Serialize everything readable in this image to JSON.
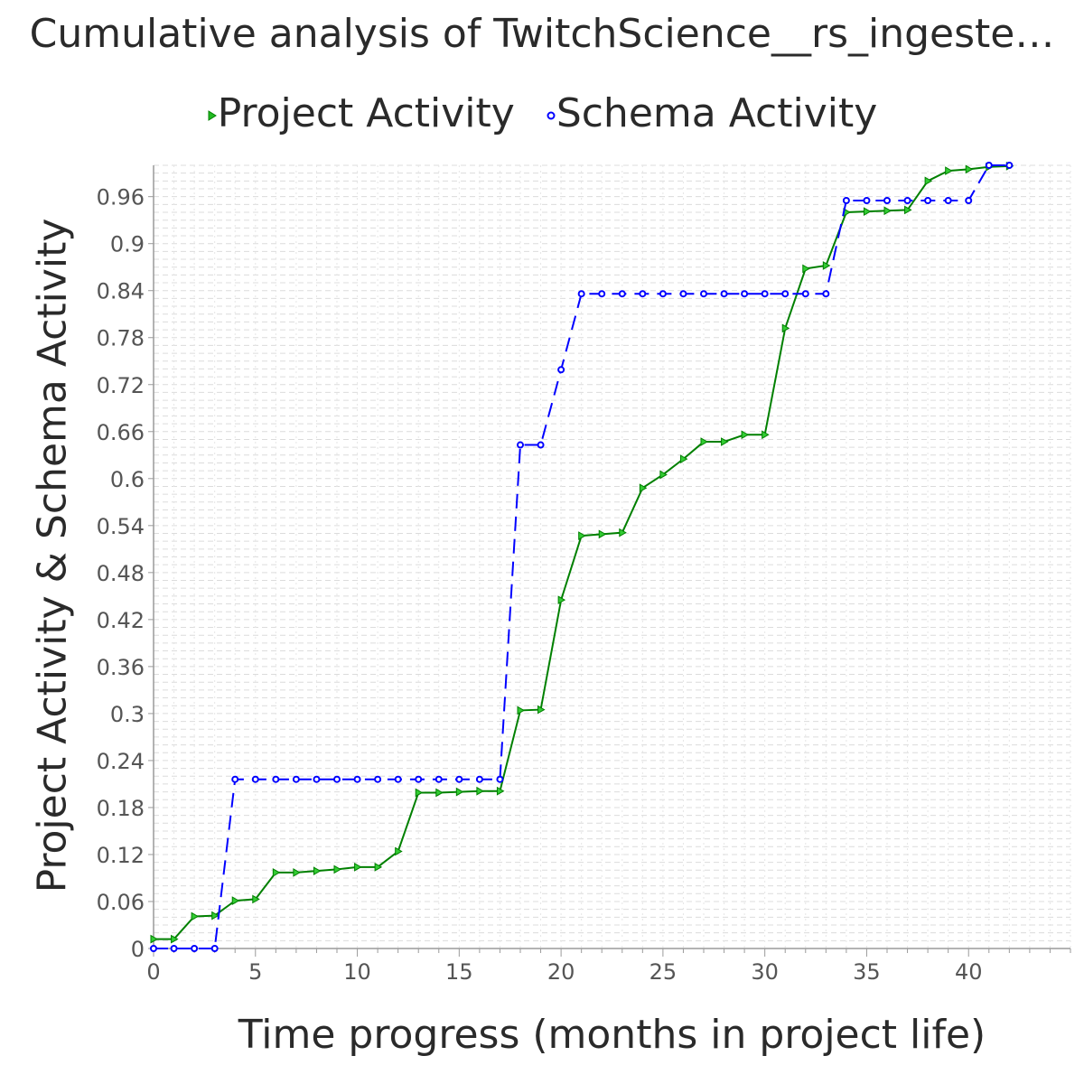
{
  "chart_data": {
    "type": "line",
    "title": "Cumulative analysis of TwitchScience__rs_ingeste…",
    "xlabel": "Time progress (months in project life)",
    "ylabel": "Project Activity & Schema Activity",
    "xlim": [
      0,
      45
    ],
    "ylim": [
      0,
      1.0
    ],
    "x_ticks": [
      0,
      5,
      10,
      15,
      20,
      25,
      30,
      35,
      40
    ],
    "y_ticks": [
      0,
      0.06,
      0.12,
      0.18,
      0.24,
      0.3,
      0.36,
      0.42,
      0.48,
      0.54,
      0.6,
      0.66,
      0.72,
      0.78,
      0.84,
      0.9,
      0.96
    ],
    "y_tick_labels": [
      "0",
      "0.06",
      "0.12",
      "0.18",
      "0.24",
      "0.3",
      "0.36",
      "0.42",
      "0.48",
      "0.54",
      "0.6",
      "0.66",
      "0.72",
      "0.78",
      "0.84",
      "0.9",
      "0.96"
    ],
    "grid": true,
    "legend": "top",
    "series": [
      {
        "name": "Project Activity",
        "color": "#008000",
        "marker": "triangle-right",
        "dash": "solid",
        "x": [
          0,
          1,
          2,
          3,
          4,
          5,
          6,
          7,
          8,
          9,
          10,
          11,
          12,
          13,
          14,
          15,
          16,
          17,
          18,
          19,
          20,
          21,
          22,
          23,
          24,
          25,
          26,
          27,
          28,
          29,
          30,
          31,
          32,
          33,
          34,
          35,
          36,
          37,
          38,
          39,
          40,
          41,
          42
        ],
        "y": [
          0.012,
          0.012,
          0.041,
          0.042,
          0.061,
          0.063,
          0.097,
          0.097,
          0.099,
          0.101,
          0.104,
          0.104,
          0.124,
          0.199,
          0.199,
          0.2,
          0.201,
          0.201,
          0.304,
          0.305,
          0.445,
          0.527,
          0.529,
          0.531,
          0.588,
          0.605,
          0.625,
          0.647,
          0.647,
          0.656,
          0.656,
          0.792,
          0.868,
          0.872,
          0.94,
          0.941,
          0.942,
          0.943,
          0.98,
          0.993,
          0.995,
          0.998,
          0.999
        ]
      },
      {
        "name": "Schema Activity",
        "color": "#0000ff",
        "marker": "circle",
        "dash": "dashed",
        "x": [
          0,
          1,
          2,
          3,
          4,
          5,
          6,
          7,
          8,
          9,
          10,
          11,
          12,
          13,
          14,
          15,
          16,
          17,
          18,
          19,
          20,
          21,
          22,
          23,
          24,
          25,
          26,
          27,
          28,
          29,
          30,
          31,
          32,
          33,
          34,
          35,
          36,
          37,
          38,
          39,
          40,
          41,
          42
        ],
        "y": [
          0,
          0,
          0,
          0,
          0.216,
          0.216,
          0.216,
          0.216,
          0.216,
          0.216,
          0.216,
          0.216,
          0.216,
          0.216,
          0.216,
          0.216,
          0.216,
          0.216,
          0.643,
          0.643,
          0.739,
          0.836,
          0.836,
          0.836,
          0.836,
          0.836,
          0.836,
          0.836,
          0.836,
          0.836,
          0.836,
          0.836,
          0.836,
          0.836,
          0.955,
          0.955,
          0.955,
          0.955,
          0.955,
          0.955,
          0.955,
          1.0,
          1.0
        ]
      }
    ]
  }
}
